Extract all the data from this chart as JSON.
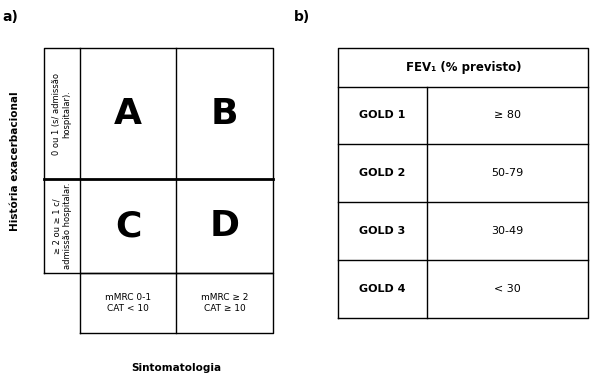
{
  "panel_a_label": "a)",
  "panel_b_label": "b)",
  "y_axis_label": "História exacerbacional",
  "x_axis_label": "Sintomatologia",
  "row_labels_top": "0 ou 1 (s/ admissão\nhospitalar).",
  "row_labels_bot": "≥ 2 ou ≥ 1 c/\nadmissão hospitalar.",
  "col_label_left": "mMRC 0-1\nCAT < 10",
  "col_label_right": "mMRC ≥ 2\nCAT ≥ 10",
  "quadrant_letters": [
    "A",
    "B",
    "C",
    "D"
  ],
  "table_b_header": "FEV₁ (% previsto)",
  "table_b_rows": [
    [
      "GOLD 1",
      "≥ 80"
    ],
    [
      "GOLD 2",
      "50-79"
    ],
    [
      "GOLD 3",
      "30-49"
    ],
    [
      "GOLD 4",
      "< 30"
    ]
  ],
  "background_color": "#ffffff",
  "text_color": "#000000",
  "line_color": "#000000",
  "lw": 1.0,
  "letter_fontsize": 26,
  "label_fontsize": 6.0,
  "col_label_fontsize": 6.5,
  "axis_label_fontsize": 7.5,
  "panel_label_fontsize": 10,
  "table_header_fontsize": 8.5,
  "table_row_fontsize": 8.0
}
